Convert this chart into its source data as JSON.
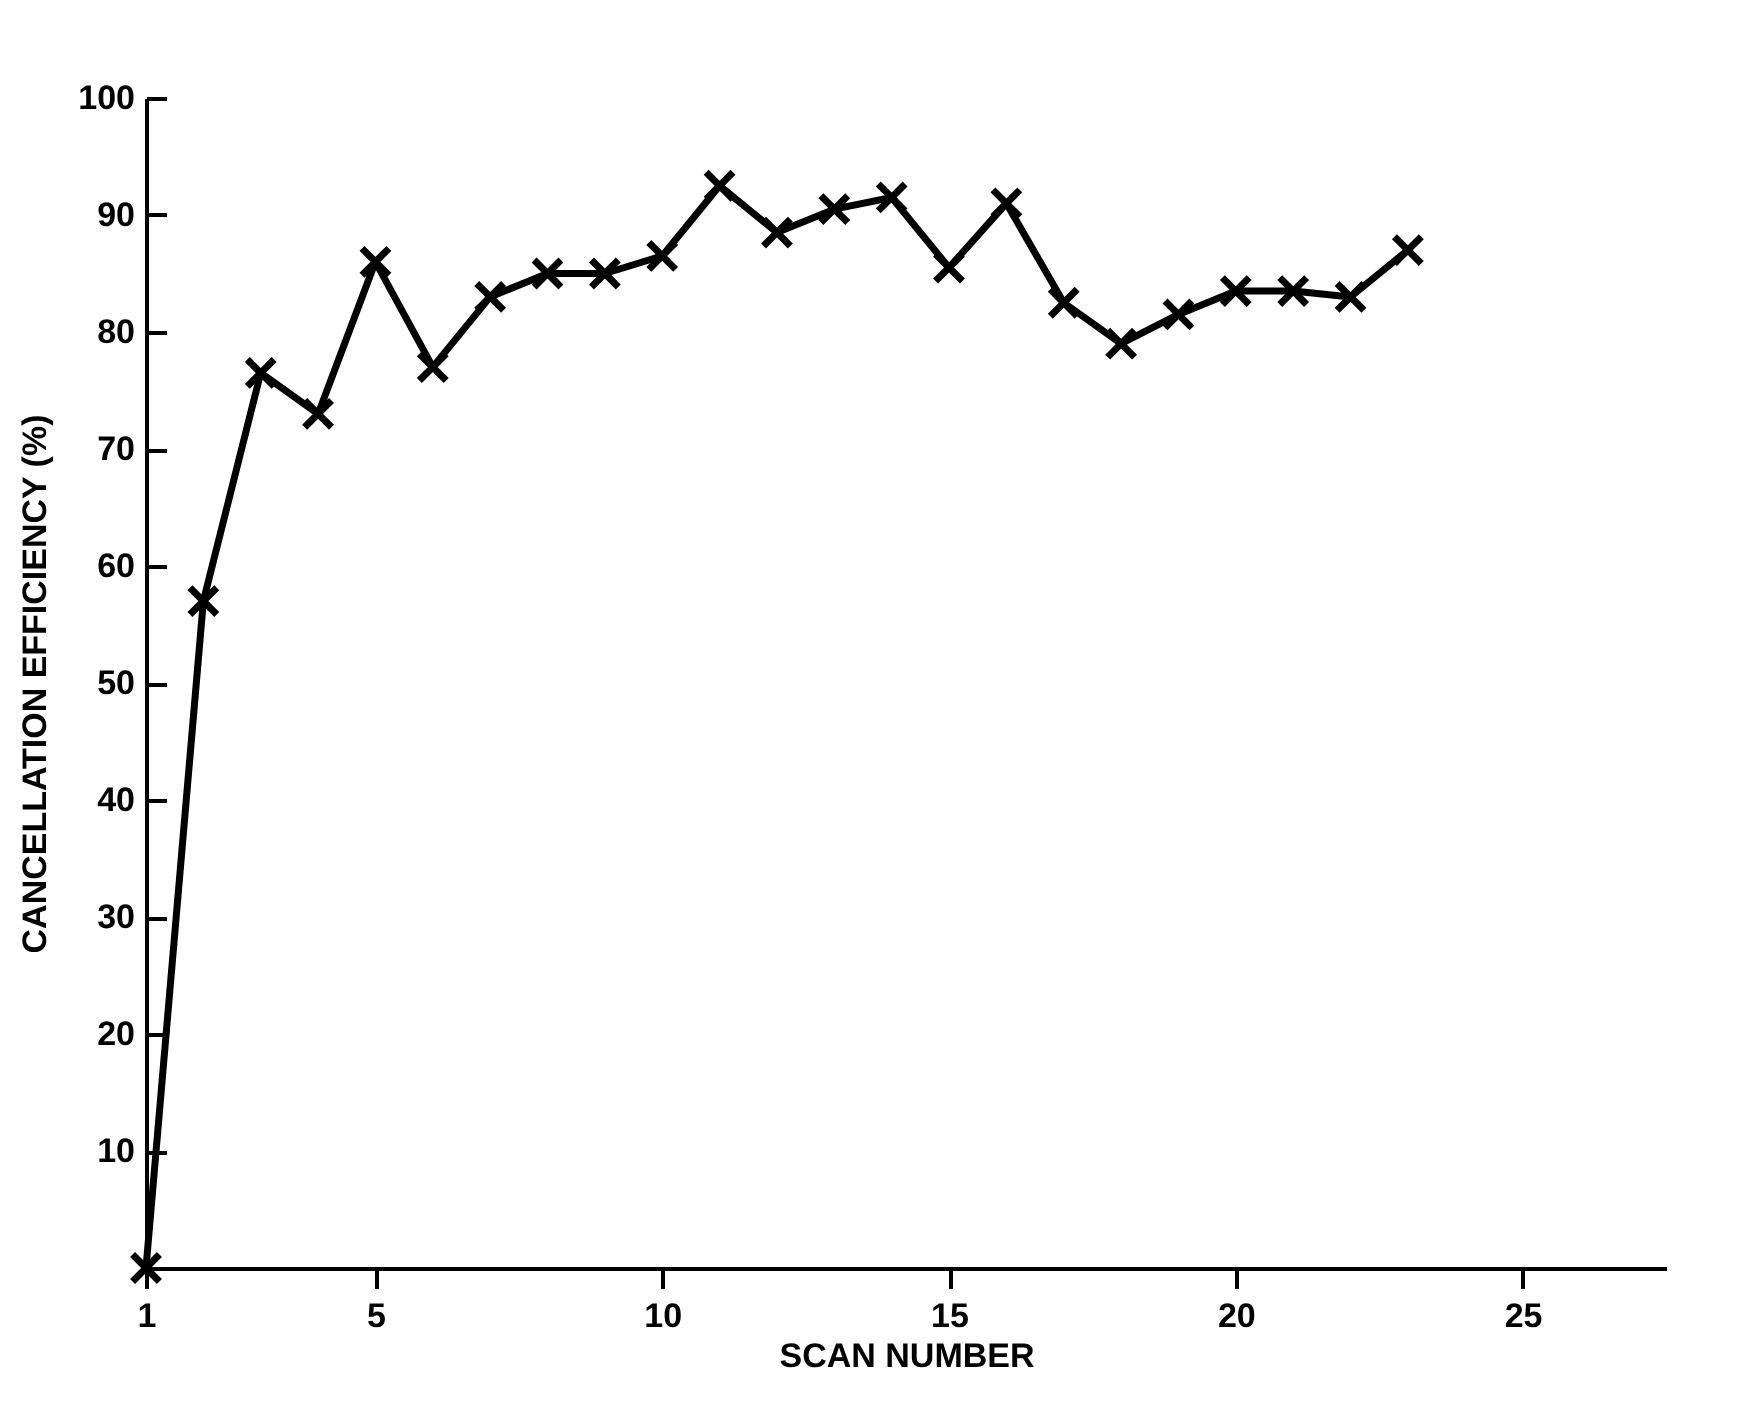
{
  "chart_data": {
    "type": "line",
    "xlabel": "SCAN NUMBER",
    "ylabel": "CANCELLATION   EFFICIENCY   (%)",
    "x": [
      1,
      2,
      3,
      4,
      5,
      6,
      7,
      8,
      9,
      10,
      11,
      12,
      13,
      14,
      15,
      16,
      17,
      18,
      19,
      20,
      21,
      22,
      23
    ],
    "series": [
      {
        "color": "#000000",
        "values": [
          0,
          57,
          76.5,
          73,
          86,
          77,
          83,
          85,
          85,
          86.5,
          92.5,
          88.5,
          90.5,
          91.5,
          85.5,
          91,
          82.5,
          79,
          81.5,
          83.5,
          83.5,
          83,
          87
        ]
      }
    ],
    "xlim": [
      1,
      27.5
    ],
    "xticks": [
      1,
      5,
      10,
      15,
      20,
      25
    ],
    "ylim": [
      0,
      100
    ],
    "yticks": [
      10,
      20,
      30,
      40,
      50,
      60,
      70,
      80,
      90,
      100
    ],
    "grid": false,
    "legend": false,
    "marker": "cross",
    "line_style": "solid"
  }
}
